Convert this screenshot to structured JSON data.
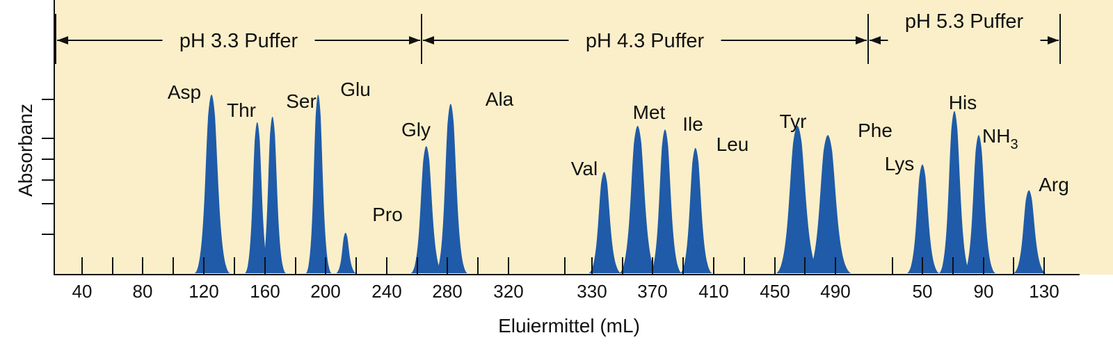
{
  "chart_data": {
    "type": "line",
    "xlabel": "Eluiermittel (mL)",
    "ylabel": "Absorbanz",
    "colors": {
      "peak": "#1f5ba8",
      "background": "#fbefc9",
      "axis": "#111111"
    },
    "x_ticks": [
      "40",
      "80",
      "120",
      "160",
      "200",
      "240",
      "280",
      "320",
      "330",
      "370",
      "410",
      "450",
      "490",
      "50",
      "90",
      "130"
    ],
    "buffers": [
      {
        "label": "pH 3.3 Puffer"
      },
      {
        "label": "pH 4.3 Puffer"
      },
      {
        "label": "pH 5.3 Puffer"
      }
    ],
    "peaks": [
      {
        "name": "Asp",
        "x": 125,
        "height": 0.97
      },
      {
        "name": "Thr",
        "x": 155,
        "height": 0.82
      },
      {
        "name": "Ser",
        "x": 165,
        "height": 0.85
      },
      {
        "name": "Glu",
        "x": 195,
        "height": 0.97
      },
      {
        "name": "Pro",
        "x": 213,
        "height": 0.22
      },
      {
        "name": "Gly",
        "x": 266,
        "height": 0.69
      },
      {
        "name": "Ala",
        "x": 282,
        "height": 0.92
      },
      {
        "name": "Val",
        "x": 338,
        "height": 0.55
      },
      {
        "name": "Met",
        "x": 360,
        "height": 0.8
      },
      {
        "name": "Ile",
        "x": 378,
        "height": 0.78
      },
      {
        "name": "Leu",
        "x": 398,
        "height": 0.68
      },
      {
        "name": "Tyr",
        "x": 465,
        "height": 0.8
      },
      {
        "name": "Phe",
        "x": 485,
        "height": 0.75
      },
      {
        "name": "Lys",
        "x": 50,
        "height": 0.59
      },
      {
        "name": "His",
        "x": 71,
        "height": 0.88
      },
      {
        "name": "NH",
        "sub": "3",
        "x": 87,
        "height": 0.75
      },
      {
        "name": "Arg",
        "x": 120,
        "height": 0.45
      }
    ]
  }
}
